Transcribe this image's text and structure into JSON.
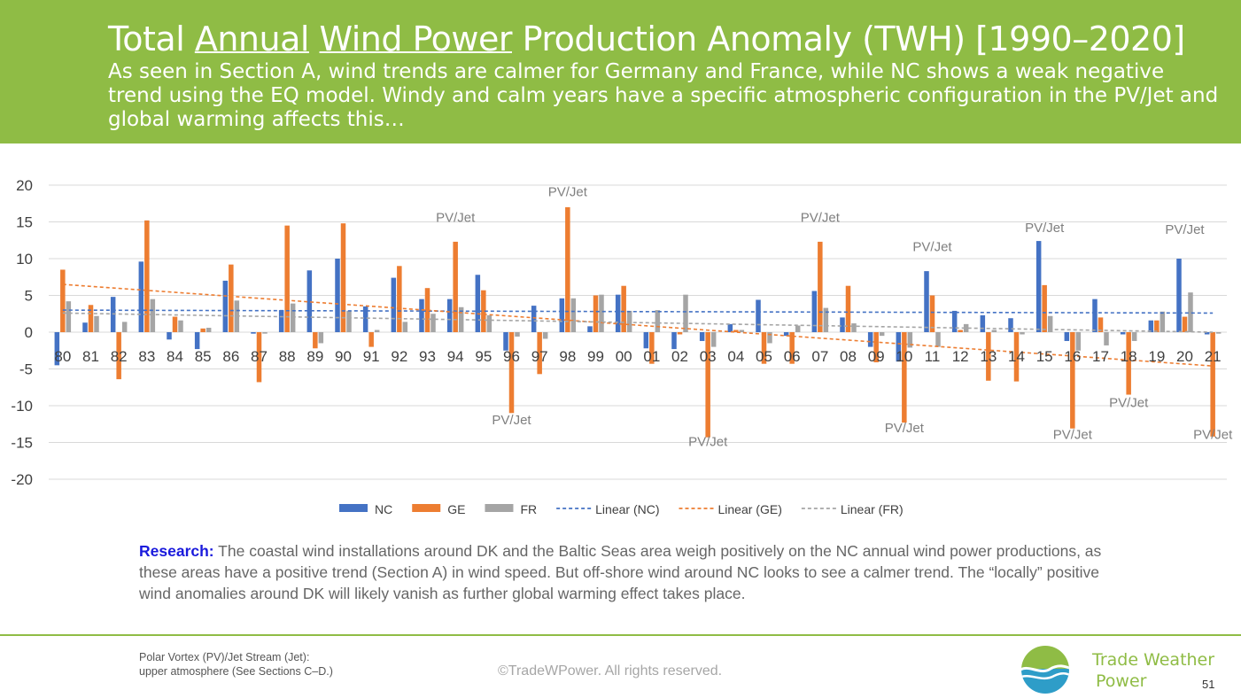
{
  "header": {
    "title_parts": [
      "Total ",
      "Annual",
      " ",
      "Wind Power",
      " Production Anomaly (TWH) [1990–2020]"
    ],
    "subtitle": "As seen in Section A, wind trends are calmer for Germany and France, while NC shows a weak negative trend using the EQ model. Windy and calm years have a specific atmospheric configuration in the PV/Jet and global warming affects this…"
  },
  "chart_data": {
    "type": "bar",
    "categories": [
      "80",
      "81",
      "82",
      "83",
      "84",
      "85",
      "86",
      "87",
      "88",
      "89",
      "90",
      "91",
      "92",
      "93",
      "94",
      "95",
      "96",
      "97",
      "98",
      "99",
      "00",
      "01",
      "02",
      "03",
      "04",
      "05",
      "06",
      "07",
      "08",
      "09",
      "10",
      "11",
      "12",
      "13",
      "14",
      "15",
      "16",
      "17",
      "18",
      "19",
      "20",
      "21"
    ],
    "series": [
      {
        "name": "NC",
        "color": "#4472c4",
        "values": [
          -4.5,
          1.3,
          4.8,
          9.6,
          -1.0,
          -2.3,
          7.0,
          -0.2,
          3.0,
          8.4,
          10.0,
          3.5,
          7.4,
          4.5,
          4.5,
          7.8,
          -2.5,
          3.6,
          4.6,
          0.8,
          5.1,
          -2.2,
          -2.3,
          -1.2,
          1.1,
          4.4,
          -0.5,
          5.6,
          2.0,
          -2.0,
          -4.0,
          8.3,
          2.9,
          2.3,
          1.9,
          12.4,
          -1.2,
          4.5,
          -0.3,
          1.6,
          10.0,
          -0.3
        ]
      },
      {
        "name": "GE",
        "color": "#ed7d31",
        "values": [
          8.5,
          3.7,
          -6.4,
          15.2,
          2.1,
          0.5,
          9.2,
          -6.8,
          14.5,
          -2.2,
          14.8,
          -2.0,
          9.0,
          6.0,
          12.3,
          5.7,
          -11.0,
          -5.7,
          17.0,
          5.0,
          6.3,
          -4.3,
          -0.3,
          -14.3,
          0.3,
          -4.3,
          -4.3,
          12.3,
          6.3,
          -4.1,
          -12.3,
          5.0,
          0.3,
          -6.6,
          -6.7,
          6.4,
          -13.1,
          2.0,
          -8.5,
          1.6,
          2.1,
          -14.2
        ]
      },
      {
        "name": "FR",
        "color": "#a5a5a5",
        "values": [
          4.2,
          2.2,
          1.4,
          4.5,
          1.6,
          0.6,
          4.3,
          -0.2,
          3.9,
          -1.5,
          2.9,
          0.3,
          1.4,
          2.5,
          3.4,
          2.3,
          -0.6,
          -0.9,
          4.6,
          5.1,
          2.9,
          3.0,
          5.1,
          -2.0,
          0.3,
          -1.5,
          0.9,
          3.3,
          1.2,
          -0.5,
          -2.1,
          -2.0,
          1.1,
          0.3,
          -0.3,
          2.2,
          -2.5,
          -1.8,
          -1.2,
          2.8,
          5.4,
          -0.2
        ]
      }
    ],
    "trendlines": [
      {
        "name": "Linear (NC)",
        "color": "#4472c4",
        "start": 3.0,
        "end": 2.6
      },
      {
        "name": "Linear (GE)",
        "color": "#ed7d31",
        "start": 6.5,
        "end": -4.6
      },
      {
        "name": "Linear (FR)",
        "color": "#a5a5a5",
        "start": 2.6,
        "end": 0.0
      }
    ],
    "ylim": [
      -20,
      20
    ],
    "yticks": [
      "-20",
      "-15",
      "-10",
      "-5",
      "0",
      "5",
      "10",
      "15",
      "20"
    ],
    "grid": true,
    "legend_placement": "bottom",
    "annotations": [
      {
        "text": "PV/Jet",
        "category": "94",
        "value": 15.0
      },
      {
        "text": "PV/Jet",
        "category": "96",
        "value": -12.5
      },
      {
        "text": "PV/Jet",
        "category": "98",
        "value": 18.5
      },
      {
        "text": "PV/Jet",
        "category": "03",
        "value": -15.5
      },
      {
        "text": "PV/Jet",
        "category": "07",
        "value": 15.0
      },
      {
        "text": "PV/Jet",
        "category": "10",
        "value": -13.6
      },
      {
        "text": "PV/Jet",
        "category": "11",
        "value": 11.0
      },
      {
        "text": "PV/Jet",
        "category": "15",
        "value": 13.6
      },
      {
        "text": "PV/Jet",
        "category": "16",
        "value": -14.5
      },
      {
        "text": "PV/Jet",
        "category": "18",
        "value": -10.2
      },
      {
        "text": "PV/Jet",
        "category": "20",
        "value": 13.4
      },
      {
        "text": "PV/Jet",
        "category": "21",
        "value": -14.5
      }
    ]
  },
  "research": {
    "label": "Research:",
    "text": " The coastal wind installations around DK and the Baltic Seas area weigh positively on the NC annual wind power productions, as these areas have a positive trend (Section A) in wind speed. But off-shore wind around NC looks to see a calmer trend. The “locally” positive wind anomalies around DK will likely vanish as further global warming effect takes place."
  },
  "footer": {
    "footnote_line1": "Polar Vortex (PV)/Jet Stream (Jet):",
    "footnote_line2": "upper atmosphere (See Sections C–D.)",
    "copyright": "©TradeWPower. All rights reserved.",
    "brand_line1": "Trade Weather",
    "brand_line2": "Power",
    "page_number": "51",
    "logo_icon": "wave-globe-icon"
  }
}
